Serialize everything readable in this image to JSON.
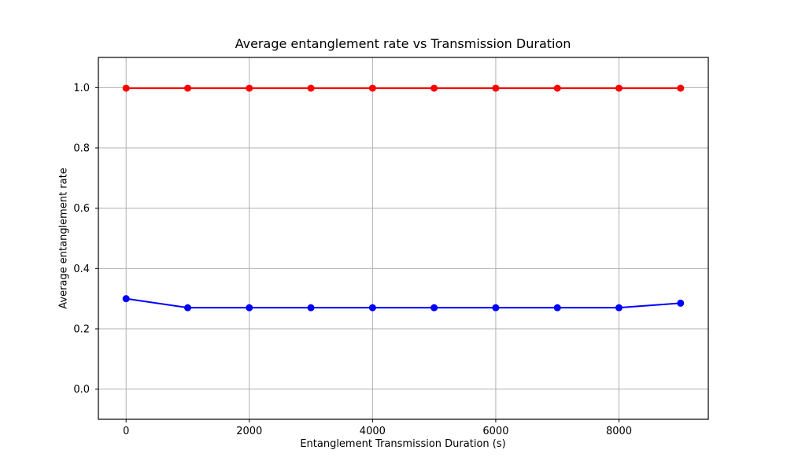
{
  "chart_data": {
    "type": "line",
    "title": "Average entanglement rate vs Transmission Duration",
    "xlabel": "Entanglement Transmission Duration (s)",
    "ylabel": "Average entanglement rate",
    "x": [
      0,
      1000,
      2000,
      3000,
      4000,
      5000,
      6000,
      7000,
      8000,
      9000
    ],
    "series": [
      {
        "name": "red-series",
        "color": "#ff0000",
        "marker": "o",
        "values": [
          0.998,
          0.998,
          0.998,
          0.998,
          0.998,
          0.998,
          0.998,
          0.998,
          0.998,
          0.998
        ]
      },
      {
        "name": "blue-series",
        "color": "#0000ff",
        "marker": "o",
        "values": [
          0.3,
          0.27,
          0.27,
          0.27,
          0.27,
          0.27,
          0.27,
          0.27,
          0.27,
          0.285
        ]
      }
    ],
    "xlim": [
      -450,
      9450
    ],
    "ylim": [
      -0.1,
      1.1
    ],
    "xticks": {
      "values": [
        0,
        2000,
        4000,
        6000,
        8000
      ],
      "labels": [
        "0",
        "2000",
        "4000",
        "6000",
        "8000"
      ]
    },
    "yticks": {
      "values": [
        0.0,
        0.2,
        0.4,
        0.6,
        0.8,
        1.0
      ],
      "labels": [
        "0.0",
        "0.2",
        "0.4",
        "0.6",
        "0.8",
        "1.0"
      ]
    },
    "grid": true,
    "legend": "none",
    "colors": {
      "grid": "#b0b0b0",
      "axes": "#000000",
      "background": "#ffffff"
    }
  }
}
